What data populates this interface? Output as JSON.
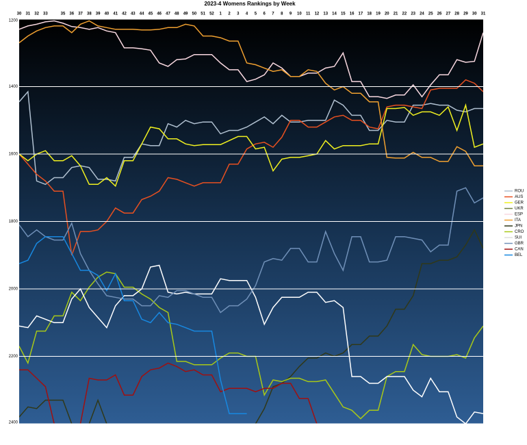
{
  "chart_data": {
    "type": "line",
    "title": "2023-4 Womens Rankings by Week",
    "categories": [
      "30",
      "31",
      "32",
      "33",
      null,
      "35",
      "36",
      "37",
      "38",
      "39",
      "40",
      "41",
      "42",
      "43",
      "44",
      "45",
      "46",
      "47",
      "48",
      "49",
      "50",
      "51",
      "52",
      "1",
      "2",
      "3",
      "4",
      "5",
      "6",
      "7",
      "8",
      "9",
      "10",
      "11",
      "12",
      "13",
      "14",
      "15",
      "16",
      "17",
      "18",
      "19",
      "20",
      "21",
      "22",
      "23",
      "24",
      "25",
      "26",
      "27",
      "28",
      "29",
      "30",
      "31"
    ],
    "ylim": [
      1200,
      2400
    ],
    "y_reversed": true,
    "yticks": [
      1200,
      1400,
      1600,
      1800,
      2000,
      2200,
      2400
    ],
    "grid": true,
    "legend": "right",
    "series": [
      {
        "name": "ROU",
        "color": "#b0c0d0",
        "values": [
          1445,
          1415,
          1680,
          1690,
          1670,
          1670,
          1640,
          1635,
          1640,
          1675,
          1675,
          1680,
          1610,
          1610,
          1570,
          1575,
          1575,
          1510,
          1520,
          1500,
          1510,
          1505,
          1505,
          1540,
          1530,
          1530,
          1520,
          1505,
          1490,
          1510,
          1485,
          1505,
          1505,
          1500,
          1500,
          1500,
          1440,
          1455,
          1485,
          1485,
          1530,
          1530,
          1500,
          1505,
          1505,
          1455,
          1455,
          1450,
          1455,
          1455,
          1470,
          1475,
          1465,
          1465
        ]
      },
      {
        "name": "AUS",
        "color": "#e85020",
        "values": [
          1600,
          1630,
          1660,
          1680,
          1710,
          1710,
          1900,
          1830,
          1830,
          1825,
          1800,
          1760,
          1775,
          1775,
          1735,
          1725,
          1710,
          1670,
          1675,
          1685,
          1695,
          1685,
          1685,
          1685,
          1630,
          1630,
          1585,
          1570,
          1565,
          1580,
          1550,
          1500,
          1500,
          1520,
          1520,
          1505,
          1490,
          1485,
          1500,
          1500,
          1520,
          1525,
          1460,
          1455,
          1455,
          1460,
          1465,
          1410,
          1405,
          1405,
          1405,
          1380,
          1390,
          1415
        ]
      },
      {
        "name": "GER",
        "color": "#f0f020",
        "values": [
          1600,
          1620,
          1600,
          1590,
          1620,
          1620,
          1605,
          1635,
          1690,
          1690,
          1670,
          1695,
          1620,
          1620,
          1570,
          1520,
          1525,
          1555,
          1555,
          1570,
          1575,
          1572,
          1572,
          1572,
          1560,
          1548,
          1548,
          1585,
          1580,
          1650,
          1615,
          1610,
          1610,
          1605,
          1600,
          1560,
          1585,
          1575,
          1575,
          1575,
          1570,
          1570,
          1465,
          1465,
          1462,
          1485,
          1475,
          1475,
          1485,
          1460,
          1530,
          1455,
          1580,
          1570
        ]
      },
      {
        "name": "UKR",
        "color": "#708040",
        "values": [
          null,
          null,
          null,
          null,
          null,
          null,
          null,
          null,
          null,
          null,
          null,
          null,
          null,
          null,
          null,
          null,
          null,
          null,
          null,
          null,
          null,
          null,
          null,
          null,
          null,
          null,
          null,
          null,
          null,
          null,
          null,
          null,
          null,
          null,
          null,
          null,
          null,
          null,
          null,
          null,
          null,
          null,
          null,
          null,
          null,
          null,
          null,
          null,
          null,
          null,
          null,
          null,
          null,
          null
        ]
      },
      {
        "name": "ESP",
        "color": "#f8d8e0",
        "values": [
          1230,
          1220,
          1215,
          1208,
          1205,
          1212,
          1222,
          1225,
          1230,
          1225,
          1235,
          1240,
          1285,
          1285,
          1288,
          1292,
          1330,
          1340,
          1320,
          1318,
          1305,
          1305,
          1305,
          1330,
          1350,
          1350,
          1385,
          1378,
          1365,
          1330,
          1345,
          1370,
          1370,
          1360,
          1360,
          1345,
          1340,
          1300,
          1385,
          1385,
          1430,
          1430,
          1435,
          1425,
          1425,
          1395,
          1430,
          1395,
          1365,
          1365,
          1320,
          1328,
          1325,
          1240
        ]
      },
      {
        "name": "ITA",
        "color": "#f0a030",
        "values": [
          1270,
          1250,
          1235,
          1225,
          1220,
          1220,
          1240,
          1215,
          1205,
          1220,
          1225,
          1230,
          1230,
          1230,
          1232,
          1232,
          1230,
          1225,
          1225,
          1215,
          1220,
          1250,
          1250,
          1255,
          1265,
          1265,
          1330,
          1335,
          1345,
          1355,
          1350,
          1370,
          1370,
          1350,
          1355,
          1390,
          1410,
          1400,
          1420,
          1420,
          1445,
          1445,
          1610,
          1612,
          1612,
          1595,
          1610,
          1610,
          1622,
          1622,
          1578,
          1592,
          1635,
          1635
        ]
      },
      {
        "name": "JPN",
        "color": "#303818",
        "values": [
          2380,
          2350,
          2355,
          2330,
          2330,
          2330,
          2400,
          null,
          2400,
          2330,
          2400,
          null,
          null,
          null,
          null,
          null,
          null,
          null,
          null,
          null,
          null,
          null,
          null,
          null,
          null,
          null,
          null,
          2400,
          2355,
          2290,
          2280,
          2260,
          2230,
          2205,
          2205,
          2190,
          2200,
          2190,
          2165,
          2165,
          2140,
          2140,
          2110,
          2060,
          2060,
          2020,
          1925,
          1925,
          1915,
          1915,
          1905,
          1870,
          1825,
          1880
        ]
      },
      {
        "name": "CRO",
        "color": "#a8c818",
        "values": [
          2170,
          2220,
          2125,
          2125,
          2080,
          2080,
          2010,
          2035,
          1995,
          1965,
          1950,
          1955,
          1995,
          1995,
          2015,
          2030,
          2055,
          2070,
          2215,
          2215,
          2225,
          2225,
          2225,
          2205,
          2190,
          2190,
          2200,
          2200,
          2315,
          2270,
          2275,
          2265,
          2265,
          2275,
          2275,
          2270,
          2310,
          2350,
          2360,
          2385,
          2360,
          2360,
          2260,
          2245,
          2245,
          2165,
          2195,
          2200,
          2200,
          2200,
          2195,
          2205,
          2145,
          2110
        ]
      },
      {
        "name": "SUI",
        "color": "#ffffff",
        "values": [
          2110,
          2115,
          2080,
          2090,
          2100,
          2100,
          2030,
          2000,
          2055,
          2085,
          2115,
          2050,
          2020,
          2020,
          2000,
          1935,
          1930,
          2010,
          2015,
          2010,
          2015,
          2015,
          2015,
          1970,
          1975,
          1975,
          1975,
          2025,
          2105,
          2055,
          2025,
          2025,
          2025,
          2010,
          2010,
          2040,
          2035,
          2055,
          2260,
          2260,
          2280,
          2280,
          2260,
          2260,
          2260,
          2300,
          2320,
          2265,
          2305,
          2305,
          2380,
          2400,
          2365,
          2370
        ]
      },
      {
        "name": "GBR",
        "color": "#7090b8",
        "values": [
          1810,
          1845,
          1825,
          1845,
          1855,
          1855,
          1805,
          1895,
          1945,
          1985,
          2020,
          2025,
          2030,
          2030,
          2050,
          2050,
          2020,
          2025,
          2005,
          2005,
          2015,
          2025,
          2025,
          2070,
          2050,
          2050,
          2030,
          1990,
          1920,
          1910,
          1915,
          1880,
          1880,
          1920,
          1920,
          1830,
          1895,
          1945,
          1845,
          1845,
          1920,
          1920,
          1915,
          1845,
          1845,
          1850,
          1855,
          1890,
          1870,
          1870,
          1710,
          1700,
          1745,
          1730
        ]
      },
      {
        "name": "CAN",
        "color": "#a01010",
        "values": [
          2240,
          2240,
          2265,
          2290,
          2400,
          null,
          null,
          2400,
          2265,
          2270,
          2270,
          2255,
          2315,
          2315,
          2260,
          2240,
          2235,
          2220,
          2230,
          2245,
          2240,
          2255,
          2255,
          2305,
          2295,
          2295,
          2295,
          2305,
          2295,
          2295,
          2280,
          2280,
          2325,
          2325,
          2400,
          null,
          null,
          null,
          null,
          null,
          null,
          null,
          null,
          null,
          null,
          null,
          null,
          null,
          null,
          null,
          null,
          null,
          null,
          null
        ]
      },
      {
        "name": "BEL",
        "color": "#1888e0",
        "values": [
          1925,
          1915,
          1865,
          1845,
          1845,
          1845,
          1895,
          1945,
          1945,
          1960,
          2005,
          1955,
          2035,
          2035,
          2090,
          2100,
          2070,
          2100,
          2105,
          2115,
          2125,
          2125,
          2125,
          2270,
          2370,
          2370,
          2370,
          null,
          null,
          null,
          null,
          null,
          null,
          null,
          null,
          null,
          null,
          null,
          null,
          null,
          null,
          null,
          null,
          null,
          null,
          null,
          null,
          null,
          null,
          null,
          null,
          null,
          null,
          null
        ]
      }
    ]
  }
}
